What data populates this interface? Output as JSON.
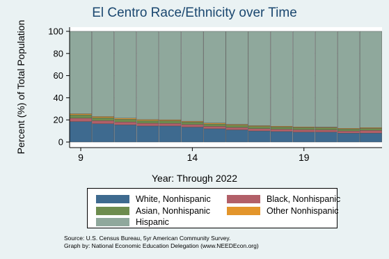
{
  "chart_data": {
    "type": "bar",
    "stacked": true,
    "title": "El Centro Race/Ethnicity over Time",
    "xlabel": "Year: Through 2022",
    "ylabel": "Percent (%) of Total Population",
    "ylim": [
      0,
      100
    ],
    "xlim": [
      8.5,
      22.5
    ],
    "x": [
      9,
      10,
      11,
      12,
      13,
      14,
      15,
      16,
      17,
      18,
      19,
      20,
      21,
      22
    ],
    "x_ticks": [
      9,
      14,
      19
    ],
    "y_ticks": [
      0,
      20,
      40,
      60,
      80,
      100
    ],
    "grid": true,
    "legend_position": "bottom",
    "series": [
      {
        "name": "White, Nonhispanic",
        "color": "#3e6a8f",
        "values": [
          18.5,
          16.5,
          15.5,
          14.5,
          14.5,
          13.5,
          12,
          11,
          10,
          9.5,
          9,
          9,
          8,
          8
        ]
      },
      {
        "name": "Black, Nonhispanic",
        "color": "#b25f68",
        "values": [
          3,
          2.8,
          2.6,
          2.5,
          2.4,
          2.3,
          2.2,
          2.2,
          2.1,
          2.1,
          2.1,
          2,
          2,
          2.5
        ]
      },
      {
        "name": "Asian, Nonhispanic",
        "color": "#6d8c4e",
        "values": [
          3,
          2.7,
          2.5,
          2.4,
          2.3,
          2.2,
          2.1,
          2,
          2,
          2,
          2,
          1.9,
          1.8,
          1.8
        ]
      },
      {
        "name": "Other Nonhispanic",
        "color": "#e3952b",
        "values": [
          1,
          1,
          0.9,
          0.9,
          0.9,
          0.8,
          0.8,
          0.8,
          0.7,
          0.7,
          0.6,
          0.6,
          0.6,
          0.7
        ]
      },
      {
        "name": "Hispanic",
        "color": "#8fa89c",
        "values": [
          74.5,
          77,
          78.5,
          79.7,
          79.9,
          81.2,
          82.9,
          84,
          85.2,
          85.7,
          86.3,
          86.5,
          87.6,
          87
        ]
      }
    ]
  },
  "footer": {
    "source": "Source: U.S. Census Bureau, 5yr American Community Survey.",
    "credit": "Graph by: National Economic Education Delegation (www.NEEDEcon.org)"
  }
}
